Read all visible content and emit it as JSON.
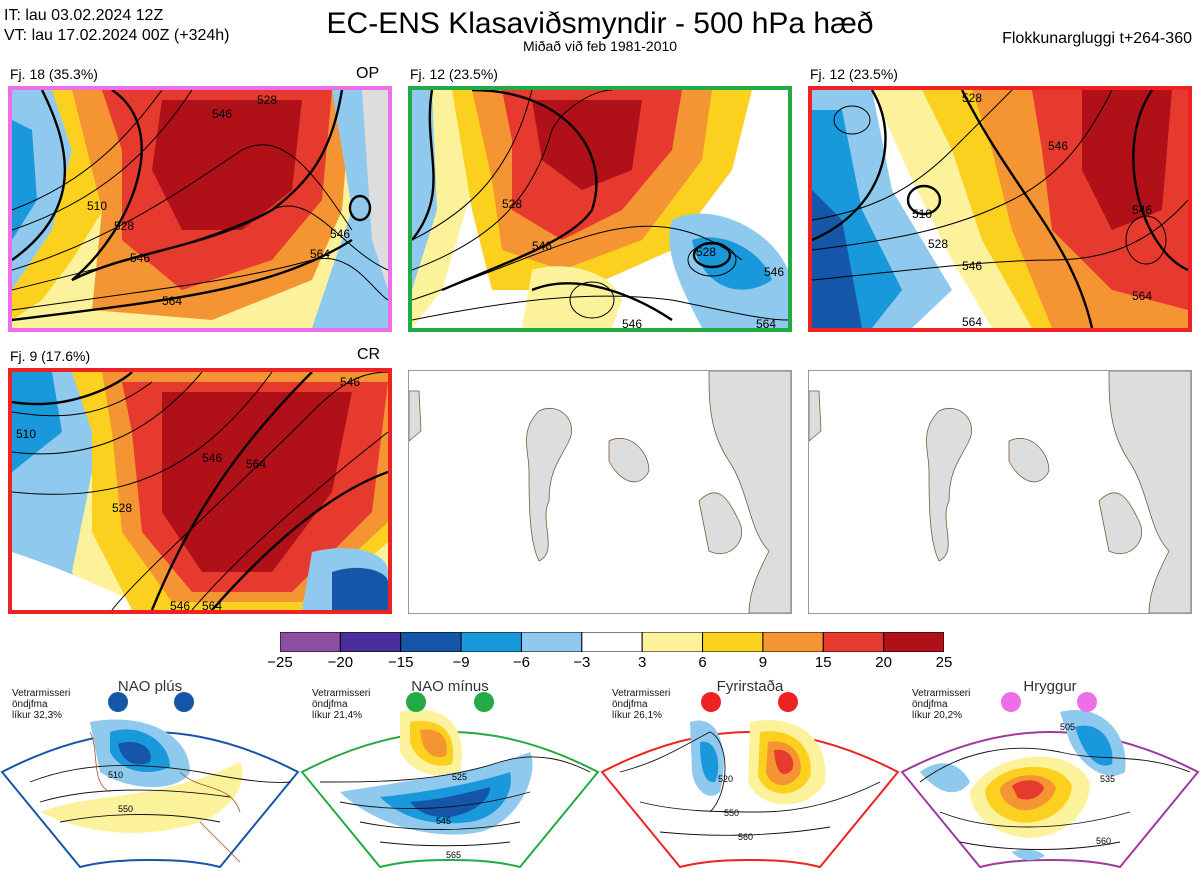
{
  "header": {
    "init_time": "IT: lau 03.02.2024 12Z",
    "valid_time": "VT: lau 17.02.2024 00Z  (+324h)",
    "title": "EC-ENS Klasaviðsmyndir - 500 hPa hæð",
    "subtitle": "Miðað við feb 1981-2010",
    "window": "Flokkunargluggi t+264-360"
  },
  "clusters": [
    {
      "label": "Fj. 18 (35.3%)",
      "tag": "OP",
      "border": "#ee6ee8",
      "contours": [
        "546",
        "528",
        "510",
        "546",
        "564",
        "546",
        "564",
        "528"
      ]
    },
    {
      "label": "Fj. 12 (23.5%)",
      "tag": "",
      "border": "#22aa44",
      "contours": [
        "528",
        "546",
        "528",
        "546",
        "546",
        "564"
      ]
    },
    {
      "label": "Fj. 12 (23.5%)",
      "tag": "",
      "border": "#ee2222",
      "contours": [
        "528",
        "546",
        "510",
        "528",
        "546",
        "546",
        "564",
        "564"
      ]
    },
    {
      "label": "Fj. 9 (17.6%)",
      "tag": "CR",
      "border": "#ee2222",
      "contours": [
        "546",
        "510",
        "546",
        "528",
        "564",
        "546",
        "564"
      ]
    }
  ],
  "colorbar": {
    "colors": [
      "#8c4ea0",
      "#4a2e9c",
      "#1556a8",
      "#1a98dc",
      "#8fcaee",
      "#ffffff",
      "#fdf29c",
      "#fcd01e",
      "#f59432",
      "#e63a2e",
      "#b01018"
    ],
    "ticks": [
      "−25",
      "−20",
      "−15",
      "−9",
      "−6",
      "−3",
      "3",
      "6",
      "9",
      "15",
      "20",
      "25"
    ]
  },
  "regimes": [
    {
      "name": "NAO plús",
      "note": [
        "Vetrarmisseri",
        "öndjfma",
        "líkur 32,3%"
      ],
      "color": "#1556a8",
      "contours": [
        "510",
        "550"
      ]
    },
    {
      "name": "NAO mínus",
      "note": [
        "Vetrarmisseri",
        "öndjfma",
        "líkur 21,4%"
      ],
      "color": "#22aa44",
      "contours": [
        "525",
        "545",
        "565"
      ]
    },
    {
      "name": "Fyrirstaða",
      "note": [
        "Vetrarmisseri",
        "öndjfma",
        "líkur 26,1%"
      ],
      "color": "#ee2222",
      "contours": [
        "520",
        "550",
        "560"
      ]
    },
    {
      "name": "Hryggur",
      "note": [
        "Vetrarmisseri",
        "öndjfma",
        "líkur 20,2%"
      ],
      "color": "#a038a0",
      "contours": [
        "505",
        "535",
        "560"
      ]
    }
  ]
}
